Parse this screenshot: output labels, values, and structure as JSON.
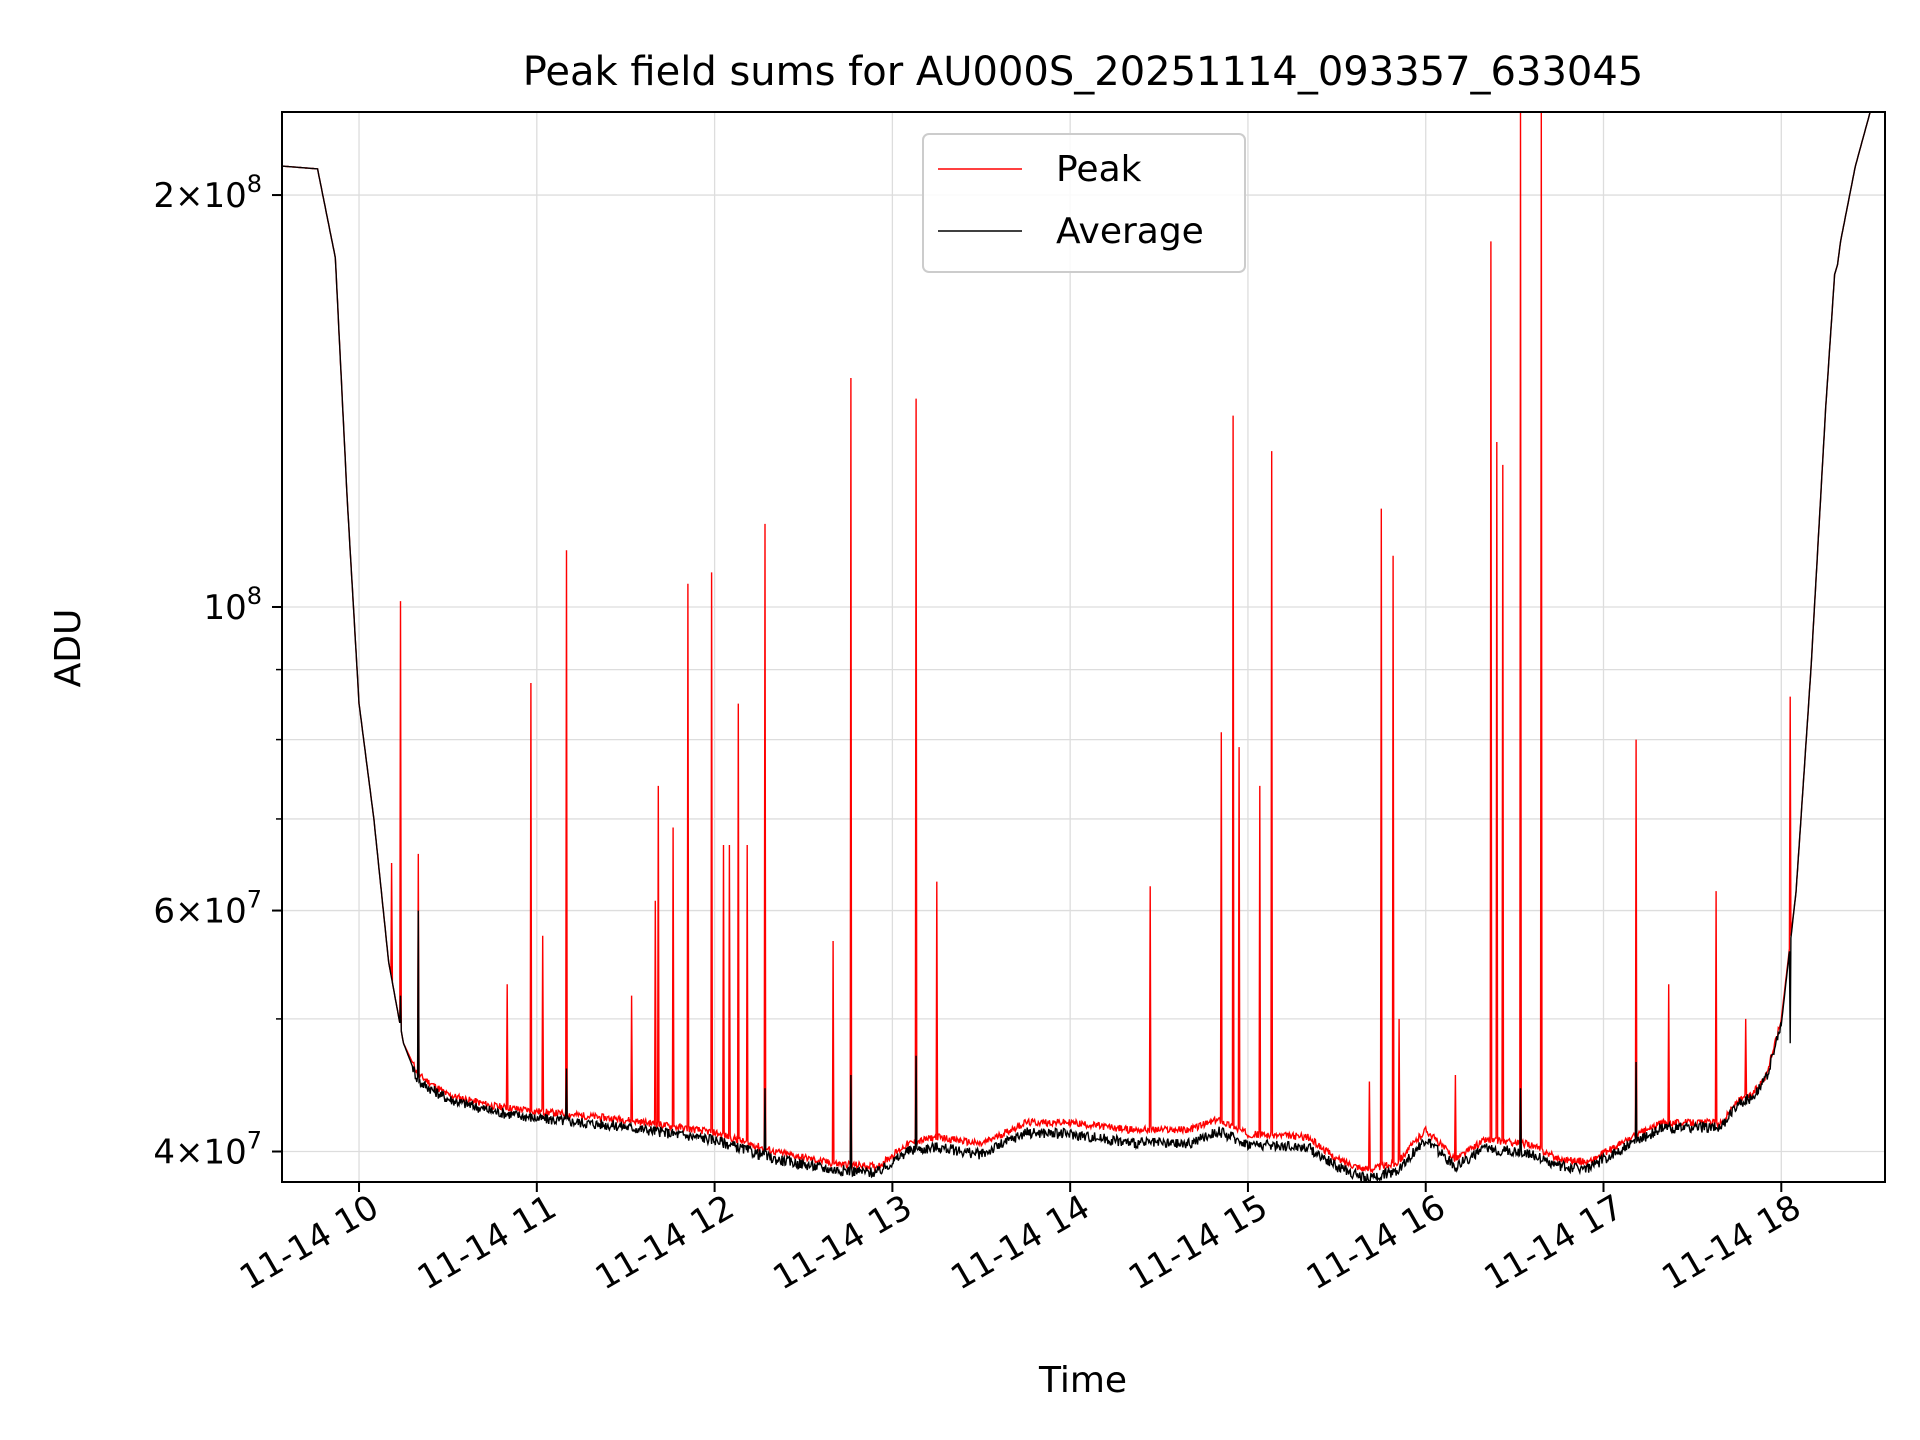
{
  "chart_data": {
    "type": "line",
    "title": "Peak field sums for AU000S_20251114_093357_633045",
    "xlabel": "Time",
    "ylabel": "ADU",
    "yscale": "log",
    "ylim": [
      38000000,
      230000000
    ],
    "xlim": [
      "11-14 09:34",
      "11-14 18:35"
    ],
    "grid": true,
    "legend_position": "upper center",
    "x_ticks": [
      "11-14 10",
      "11-14 11",
      "11-14 12",
      "11-14 13",
      "11-14 14",
      "11-14 15",
      "11-14 16",
      "11-14 17",
      "11-14 18"
    ],
    "y_ticks": [
      {
        "value": 40000000,
        "base": "4×10",
        "exp": "7"
      },
      {
        "value": 60000000,
        "base": "6×10",
        "exp": "7"
      },
      {
        "value": 100000000,
        "base": "10",
        "exp": "8"
      },
      {
        "value": 200000000,
        "base": "2×10",
        "exp": "8"
      }
    ],
    "series": [
      {
        "name": "Peak",
        "color": "#ff0000",
        "baseline": [
          [
            "09:34",
            210000000
          ],
          [
            "09:46",
            209000000
          ],
          [
            "09:52",
            180000000
          ],
          [
            "09:56",
            120000000
          ],
          [
            "10:00",
            85000000
          ],
          [
            "10:05",
            70000000
          ],
          [
            "10:10",
            55000000
          ],
          [
            "10:15",
            48000000
          ],
          [
            "10:20",
            45500000
          ],
          [
            "10:30",
            44000000
          ],
          [
            "10:45",
            43200000
          ],
          [
            "11:00",
            42800000
          ],
          [
            "11:30",
            42200000
          ],
          [
            "12:00",
            41300000
          ],
          [
            "12:20",
            40000000
          ],
          [
            "12:40",
            39200000
          ],
          [
            "12:55",
            39000000
          ],
          [
            "13:05",
            40500000
          ],
          [
            "13:15",
            41000000
          ],
          [
            "13:30",
            40500000
          ],
          [
            "13:45",
            42000000
          ],
          [
            "14:00",
            42000000
          ],
          [
            "14:20",
            41500000
          ],
          [
            "14:40",
            41500000
          ],
          [
            "14:50",
            42200000
          ],
          [
            "15:00",
            41200000
          ],
          [
            "15:20",
            41000000
          ],
          [
            "15:30",
            39500000
          ],
          [
            "15:40",
            38800000
          ],
          [
            "15:50",
            39200000
          ],
          [
            "16:00",
            41500000
          ],
          [
            "16:10",
            39500000
          ],
          [
            "16:20",
            40800000
          ],
          [
            "16:35",
            40500000
          ],
          [
            "16:45",
            39500000
          ],
          [
            "16:55",
            39300000
          ],
          [
            "17:10",
            41000000
          ],
          [
            "17:20",
            42000000
          ],
          [
            "17:40",
            42000000
          ],
          [
            "17:45",
            43500000
          ],
          [
            "17:50",
            44000000
          ],
          [
            "17:55",
            45500000
          ],
          [
            "18:00",
            50000000
          ],
          [
            "18:05",
            62000000
          ],
          [
            "18:10",
            90000000
          ],
          [
            "18:15",
            140000000
          ],
          [
            "18:18",
            175000000
          ],
          [
            "18:19",
            178000000
          ],
          [
            "18:20",
            185000000
          ],
          [
            "18:25",
            210000000
          ],
          [
            "18:30",
            230000000
          ],
          [
            "18:35",
            230000000
          ]
        ],
        "spikes": [
          [
            "10:11",
            65000000
          ],
          [
            "10:14",
            101000000
          ],
          [
            "10:20",
            66000000
          ],
          [
            "10:50",
            53000000
          ],
          [
            "10:58",
            88000000
          ],
          [
            "11:02",
            57500000
          ],
          [
            "11:10",
            110000000
          ],
          [
            "11:32",
            52000000
          ],
          [
            "11:40",
            61000000
          ],
          [
            "11:41",
            74000000
          ],
          [
            "11:46",
            69000000
          ],
          [
            "11:51",
            104000000
          ],
          [
            "11:59",
            106000000
          ],
          [
            "12:03",
            67000000
          ],
          [
            "12:05",
            67000000
          ],
          [
            "12:08",
            85000000
          ],
          [
            "12:11",
            67000000
          ],
          [
            "12:17",
            115000000
          ],
          [
            "12:40",
            57000000
          ],
          [
            "12:46",
            147000000
          ],
          [
            "13:08",
            142000000
          ],
          [
            "13:15",
            63000000
          ],
          [
            "14:27",
            62500000
          ],
          [
            "14:51",
            81000000
          ],
          [
            "14:55",
            138000000
          ],
          [
            "14:57",
            79000000
          ],
          [
            "15:04",
            74000000
          ],
          [
            "15:08",
            130000000
          ],
          [
            "15:41",
            45000000
          ],
          [
            "15:45",
            118000000
          ],
          [
            "15:49",
            109000000
          ],
          [
            "15:51",
            50000000
          ],
          [
            "16:10",
            45500000
          ],
          [
            "16:22",
            185000000
          ],
          [
            "16:24",
            132000000
          ],
          [
            "16:26",
            127000000
          ],
          [
            "16:32",
            230000000
          ],
          [
            "16:39",
            230000000
          ],
          [
            "17:11",
            80000000
          ],
          [
            "17:22",
            53000000
          ],
          [
            "17:38",
            62000000
          ],
          [
            "17:48",
            50000000
          ],
          [
            "18:03",
            86000000
          ]
        ]
      },
      {
        "name": "Average",
        "color": "#000000",
        "baseline": [
          [
            "09:34",
            210000000
          ],
          [
            "09:46",
            209000000
          ],
          [
            "09:52",
            180000000
          ],
          [
            "09:56",
            120000000
          ],
          [
            "10:00",
            85000000
          ],
          [
            "10:05",
            70000000
          ],
          [
            "10:10",
            55000000
          ],
          [
            "10:15",
            48000000
          ],
          [
            "10:20",
            45000000
          ],
          [
            "10:30",
            43700000
          ],
          [
            "10:45",
            42800000
          ],
          [
            "11:00",
            42300000
          ],
          [
            "11:30",
            41700000
          ],
          [
            "12:00",
            40800000
          ],
          [
            "12:20",
            39500000
          ],
          [
            "12:40",
            38800000
          ],
          [
            "12:55",
            38600000
          ],
          [
            "13:05",
            40000000
          ],
          [
            "13:15",
            40300000
          ],
          [
            "13:30",
            39800000
          ],
          [
            "13:45",
            41300000
          ],
          [
            "14:00",
            41200000
          ],
          [
            "14:20",
            40600000
          ],
          [
            "14:40",
            40500000
          ],
          [
            "14:50",
            41400000
          ],
          [
            "15:00",
            40500000
          ],
          [
            "15:20",
            40300000
          ],
          [
            "15:30",
            39000000
          ],
          [
            "15:40",
            38200000
          ],
          [
            "15:50",
            38700000
          ],
          [
            "16:00",
            40800000
          ],
          [
            "16:10",
            39000000
          ],
          [
            "16:20",
            40200000
          ],
          [
            "16:35",
            39900000
          ],
          [
            "16:45",
            39000000
          ],
          [
            "16:55",
            38900000
          ],
          [
            "17:10",
            40600000
          ],
          [
            "17:20",
            41600000
          ],
          [
            "17:40",
            41700000
          ],
          [
            "17:45",
            43300000
          ],
          [
            "17:50",
            43800000
          ],
          [
            "17:55",
            45300000
          ],
          [
            "18:00",
            49500000
          ],
          [
            "18:05",
            62000000
          ],
          [
            "18:10",
            90000000
          ],
          [
            "18:15",
            140000000
          ],
          [
            "18:18",
            175000000
          ],
          [
            "18:19",
            178000000
          ],
          [
            "18:20",
            185000000
          ],
          [
            "18:25",
            210000000
          ],
          [
            "18:30",
            230000000
          ],
          [
            "18:35",
            230000000
          ]
        ],
        "spikes": [
          [
            "10:14",
            52000000
          ],
          [
            "10:20",
            60000000
          ],
          [
            "11:10",
            46000000
          ],
          [
            "12:17",
            44500000
          ],
          [
            "12:46",
            45500000
          ],
          [
            "13:08",
            47000000
          ],
          [
            "16:32",
            44500000
          ],
          [
            "17:11",
            46500000
          ],
          [
            "18:03",
            48000000
          ]
        ]
      }
    ]
  }
}
